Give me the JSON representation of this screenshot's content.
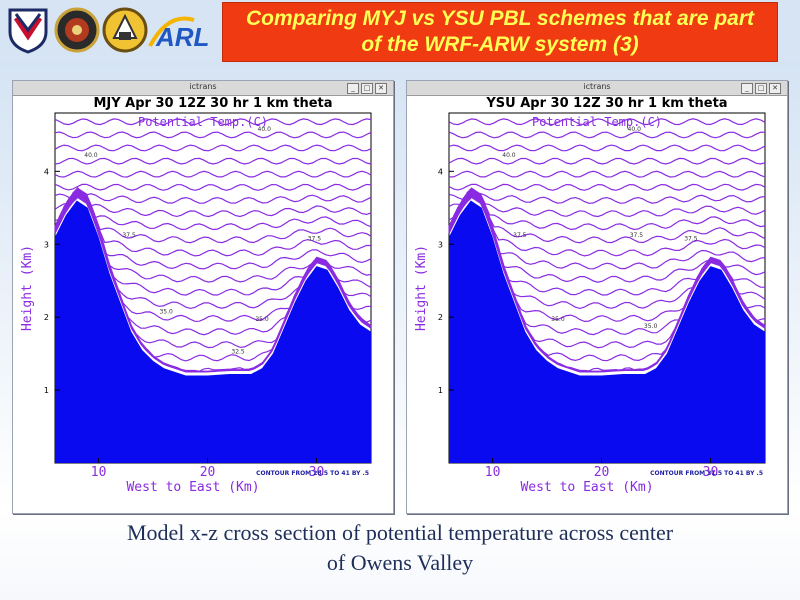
{
  "slide": {
    "title": "Comparing MYJ vs YSU PBL schemes that are part of the WRF-ARW system (3)",
    "logo_text": "ARL",
    "caption_line1": "Model x-z cross section of potential temperature across center",
    "caption_line2": "of Owens Valley"
  },
  "colors": {
    "title_bg": "#ef3a12",
    "title_text": "#ffff55",
    "terrain": "#0a0af0",
    "contour": "#8a2be2"
  },
  "windows": [
    {
      "title": "ictrans",
      "buttons": [
        "_",
        "□",
        "✕"
      ]
    },
    {
      "title": "ictrans",
      "buttons": [
        "_",
        "□",
        "✕"
      ]
    }
  ],
  "chart_data": [
    {
      "type": "contour",
      "title": "MJY Apr 30 12Z 30 hr 1 km theta",
      "subtitle": "Potential Temp.(C)",
      "xlabel": "West to East (Km)",
      "ylabel": "Height (Km)",
      "xticks": [
        "10",
        "20",
        "30"
      ],
      "yticks": [
        "1",
        "2",
        "3",
        "4"
      ],
      "xlim": [
        6,
        35
      ],
      "ylim": [
        0,
        4.8
      ],
      "footnote": "CONTOUR FROM 28.5 TO 41 BY .5",
      "contour_labels": [
        {
          "text": "40.0",
          "x": 25.2,
          "y": 4.55
        },
        {
          "text": "40.0",
          "x": 9.3,
          "y": 4.2
        },
        {
          "text": "37.5",
          "x": 12.8,
          "y": 3.1
        },
        {
          "text": "37.5",
          "x": 29.8,
          "y": 3.05
        },
        {
          "text": "35.0",
          "x": 16.2,
          "y": 2.05
        },
        {
          "text": "35.0",
          "x": 25.0,
          "y": 1.95
        },
        {
          "text": "32.5",
          "x": 22.8,
          "y": 1.5
        }
      ],
      "terrain_profile": {
        "x": [
          6.0,
          7.0,
          8.0,
          9.0,
          10.0,
          11.0,
          12.0,
          13.0,
          14.0,
          15.0,
          16.0,
          17.0,
          18.0,
          20.0,
          22.0,
          24.0,
          25.0,
          26.0,
          27.0,
          28.0,
          29.0,
          30.0,
          31.0,
          32.0,
          33.0,
          34.0,
          35.0
        ],
        "height_km": [
          3.1,
          3.4,
          3.6,
          3.5,
          3.1,
          2.6,
          2.2,
          1.8,
          1.55,
          1.4,
          1.3,
          1.25,
          1.2,
          1.2,
          1.22,
          1.22,
          1.3,
          1.5,
          1.85,
          2.2,
          2.5,
          2.7,
          2.65,
          2.4,
          2.1,
          1.9,
          1.8
        ]
      }
    },
    {
      "type": "contour",
      "title": "YSU Apr 30 12Z 30 hr 1 km theta",
      "subtitle": "Potential Temp.(C)",
      "xlabel": "West to East (Km)",
      "ylabel": "Height (Km)",
      "xticks": [
        "10",
        "20",
        "30"
      ],
      "yticks": [
        "1",
        "2",
        "3",
        "4"
      ],
      "xlim": [
        6,
        35
      ],
      "ylim": [
        0,
        4.8
      ],
      "footnote": "CONTOUR FROM 31.5 TO 41 BY .5",
      "contour_labels": [
        {
          "text": "40.0",
          "x": 23.0,
          "y": 4.55
        },
        {
          "text": "40.0",
          "x": 11.5,
          "y": 4.2
        },
        {
          "text": "37.5",
          "x": 12.5,
          "y": 3.1
        },
        {
          "text": "37.5",
          "x": 23.2,
          "y": 3.1
        },
        {
          "text": "37.5",
          "x": 28.2,
          "y": 3.05
        },
        {
          "text": "35.0",
          "x": 16.0,
          "y": 1.95
        },
        {
          "text": "35.0",
          "x": 24.5,
          "y": 1.85
        }
      ],
      "terrain_profile": {
        "x": [
          6.0,
          7.0,
          8.0,
          9.0,
          10.0,
          11.0,
          12.0,
          13.0,
          14.0,
          15.0,
          16.0,
          17.0,
          18.0,
          20.0,
          22.0,
          24.0,
          25.0,
          26.0,
          27.0,
          28.0,
          29.0,
          30.0,
          31.0,
          32.0,
          33.0,
          34.0,
          35.0
        ],
        "height_km": [
          3.1,
          3.4,
          3.6,
          3.5,
          3.1,
          2.6,
          2.2,
          1.8,
          1.55,
          1.4,
          1.3,
          1.25,
          1.2,
          1.2,
          1.22,
          1.22,
          1.3,
          1.5,
          1.85,
          2.2,
          2.5,
          2.7,
          2.65,
          2.4,
          2.1,
          1.9,
          1.8
        ]
      }
    }
  ]
}
